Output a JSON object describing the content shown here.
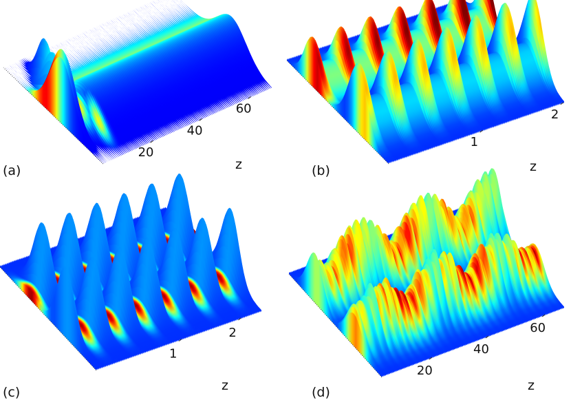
{
  "chart_data": [
    {
      "type": "surface",
      "panel_label": "(a)",
      "xlabel": "z",
      "x_ticks": [
        "20",
        "40",
        "60"
      ],
      "xlim": [
        0,
        70
      ],
      "description_values": {
        "peaks": [
          [
            0,
            0.85
          ],
          [
            5,
            0.62
          ],
          [
            10,
            0.55
          ]
        ],
        "plateau_level": 0.38
      }
    },
    {
      "type": "surface",
      "panel_label": "(b)",
      "xlabel": "z",
      "x_ticks": [
        "1",
        "2"
      ],
      "xlim": [
        0,
        2.1
      ],
      "description_values": {
        "back_row_peaks": 6,
        "front_row_peaks": 6,
        "front_peak_height": 0.9,
        "back_peak_height": 0.55
      }
    },
    {
      "type": "surface",
      "panel_label": "(c)",
      "xlabel": "z",
      "x_ticks": [
        "1",
        "2"
      ],
      "xlim": [
        0,
        2.9
      ],
      "description_values": {
        "back_row_peaks": 6,
        "front_row_peaks": 6,
        "peak_height": 0.8
      }
    },
    {
      "type": "surface",
      "panel_label": "(d)",
      "xlabel": "z",
      "x_ticks": [
        "20",
        "40",
        "60"
      ],
      "xlim": [
        0,
        70
      ],
      "description_values": {
        "rows": 2,
        "irregular_peaks": true
      }
    }
  ]
}
